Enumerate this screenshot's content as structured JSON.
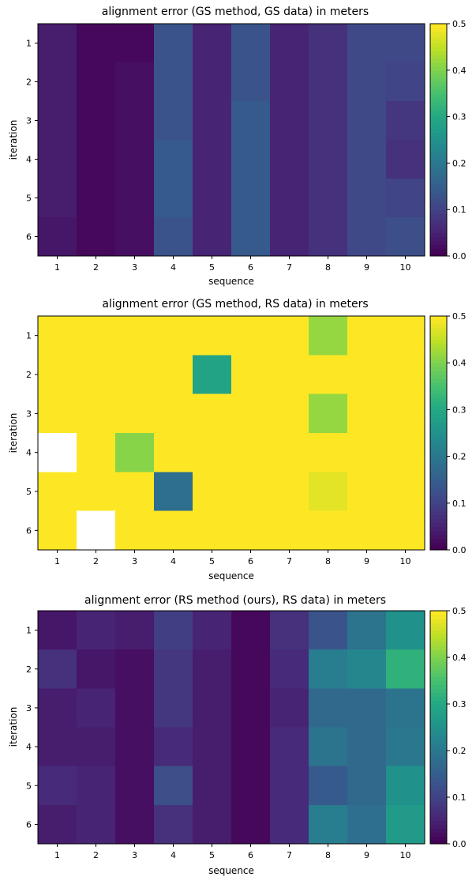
{
  "chart_data": [
    {
      "type": "heatmap",
      "title": "alignment error (GS method, GS data) in meters",
      "xlabel": "sequence",
      "ylabel": "iteration",
      "x_ticks": [
        "1",
        "2",
        "3",
        "4",
        "5",
        "6",
        "7",
        "8",
        "9",
        "10"
      ],
      "y_ticks": [
        "1",
        "2",
        "3",
        "4",
        "5",
        "6"
      ],
      "colormap": "viridis",
      "clim": [
        0.0,
        0.5
      ],
      "colorbar_ticks": [
        "0.0",
        "0.1",
        "0.2",
        "0.3",
        "0.4",
        "0.5"
      ],
      "values": [
        [
          0.04,
          0.01,
          0.01,
          0.13,
          0.05,
          0.13,
          0.05,
          0.07,
          0.11,
          0.11
        ],
        [
          0.04,
          0.01,
          0.02,
          0.13,
          0.05,
          0.13,
          0.05,
          0.07,
          0.11,
          0.1
        ],
        [
          0.04,
          0.01,
          0.02,
          0.13,
          0.05,
          0.14,
          0.05,
          0.07,
          0.11,
          0.08
        ],
        [
          0.04,
          0.01,
          0.02,
          0.14,
          0.05,
          0.14,
          0.05,
          0.07,
          0.11,
          0.07
        ],
        [
          0.04,
          0.01,
          0.02,
          0.14,
          0.05,
          0.14,
          0.05,
          0.07,
          0.11,
          0.1
        ],
        [
          0.03,
          0.01,
          0.02,
          0.13,
          0.05,
          0.14,
          0.05,
          0.07,
          0.11,
          0.12
        ]
      ]
    },
    {
      "type": "heatmap",
      "title": "alignment error (GS method, RS data) in meters",
      "xlabel": "sequence",
      "ylabel": "iteration",
      "x_ticks": [
        "1",
        "2",
        "3",
        "4",
        "5",
        "6",
        "7",
        "8",
        "9",
        "10"
      ],
      "y_ticks": [
        "1",
        "2",
        "3",
        "4",
        "5",
        "6"
      ],
      "colormap": "viridis",
      "clim": [
        0.0,
        0.5
      ],
      "colorbar_ticks": [
        "0.0",
        "0.1",
        "0.2",
        "0.3",
        "0.4",
        "0.5"
      ],
      "missing_color": "#ffffff",
      "values": [
        [
          0.5,
          0.5,
          0.5,
          0.5,
          0.5,
          0.5,
          0.5,
          0.42,
          0.5,
          0.5
        ],
        [
          0.5,
          0.5,
          0.5,
          0.5,
          0.29,
          0.5,
          0.5,
          0.5,
          0.5,
          0.5
        ],
        [
          0.5,
          0.5,
          0.5,
          0.5,
          0.5,
          0.5,
          0.5,
          0.42,
          0.5,
          0.5
        ],
        [
          null,
          0.5,
          0.41,
          0.5,
          0.5,
          0.5,
          0.5,
          0.5,
          0.5,
          0.5
        ],
        [
          0.5,
          0.5,
          0.5,
          0.18,
          0.5,
          0.5,
          0.5,
          0.48,
          0.5,
          0.5
        ],
        [
          0.5,
          null,
          0.5,
          0.5,
          0.5,
          0.5,
          0.5,
          0.5,
          0.5,
          0.5
        ]
      ]
    },
    {
      "type": "heatmap",
      "title": "alignment error (RS method (ours), RS data) in meters",
      "xlabel": "sequence",
      "ylabel": "iteration",
      "x_ticks": [
        "1",
        "2",
        "3",
        "4",
        "5",
        "6",
        "7",
        "8",
        "9",
        "10"
      ],
      "y_ticks": [
        "1",
        "2",
        "3",
        "4",
        "5",
        "6"
      ],
      "colormap": "viridis",
      "clim": [
        0.0,
        0.5
      ],
      "colorbar_ticks": [
        "0.0",
        "0.1",
        "0.2",
        "0.3",
        "0.4",
        "0.5"
      ],
      "values": [
        [
          0.03,
          0.05,
          0.04,
          0.09,
          0.05,
          0.01,
          0.07,
          0.13,
          0.19,
          0.25
        ],
        [
          0.07,
          0.03,
          0.02,
          0.08,
          0.04,
          0.01,
          0.06,
          0.21,
          0.23,
          0.32
        ],
        [
          0.04,
          0.05,
          0.02,
          0.08,
          0.04,
          0.01,
          0.05,
          0.17,
          0.17,
          0.19
        ],
        [
          0.04,
          0.04,
          0.02,
          0.06,
          0.04,
          0.01,
          0.06,
          0.19,
          0.17,
          0.2
        ],
        [
          0.06,
          0.05,
          0.02,
          0.12,
          0.04,
          0.01,
          0.06,
          0.14,
          0.17,
          0.25
        ],
        [
          0.04,
          0.05,
          0.02,
          0.07,
          0.04,
          0.01,
          0.06,
          0.21,
          0.18,
          0.27
        ]
      ]
    }
  ]
}
